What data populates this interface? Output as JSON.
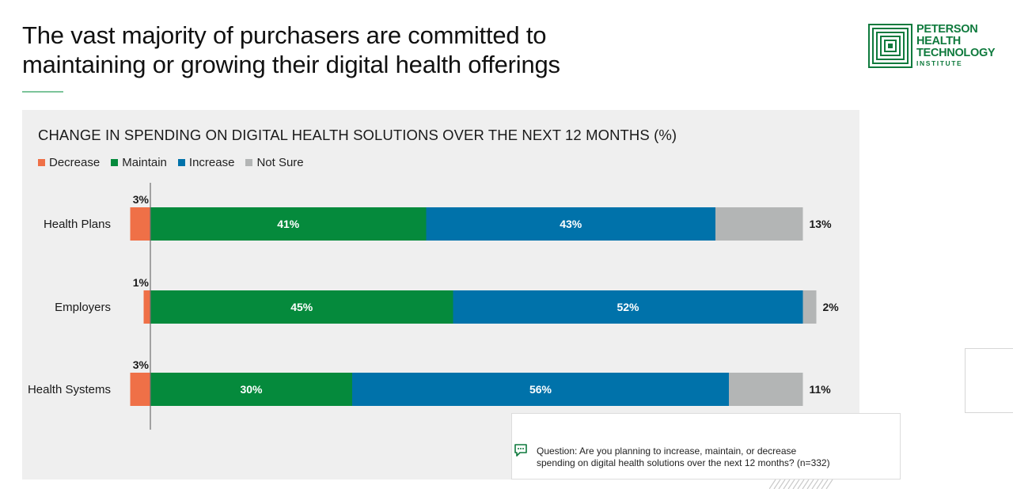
{
  "header": {
    "title_line1": "The vast majority of purchasers are committed to",
    "title_line2": "maintaining or growing their digital health offerings"
  },
  "logo": {
    "line1": "PETERSON",
    "line2": "HEALTH",
    "line3": "TECHNOLOGY",
    "line4": "INSTITUTE",
    "color": "#0f7a3d"
  },
  "chart_data": {
    "type": "bar",
    "orientation": "horizontal",
    "stacked": true,
    "title": "CHANGE IN SPENDING ON DIGITAL HEALTH SOLUTIONS OVER THE NEXT 12 MONTHS (%)",
    "categories": [
      "Health Plans",
      "Employers",
      "Health Systems"
    ],
    "series": [
      {
        "name": "Decrease",
        "color": "#ef7047",
        "values": [
          3,
          1,
          3
        ],
        "labels": [
          "3%",
          "1%",
          "3%"
        ]
      },
      {
        "name": "Maintain",
        "color": "#058a3c",
        "values": [
          41,
          45,
          30
        ],
        "labels": [
          "41%",
          "45%",
          "30%"
        ]
      },
      {
        "name": "Increase",
        "color": "#0072aa",
        "values": [
          43,
          52,
          56
        ],
        "labels": [
          "43%",
          "52%",
          "56%"
        ]
      },
      {
        "name": "Not Sure",
        "color": "#b3b5b5",
        "values": [
          13,
          2,
          11
        ],
        "labels": [
          "13%",
          "2%",
          "11%"
        ]
      }
    ],
    "xlim": [
      -3,
      100
    ],
    "grid": false,
    "legend": "top-left"
  },
  "note": {
    "icon": "chat-bubble-icon",
    "line1": "Question: Are you planning to increase, maintain, or decrease",
    "line2": "spending on digital health solutions over the next 12 months? (n=332)"
  }
}
